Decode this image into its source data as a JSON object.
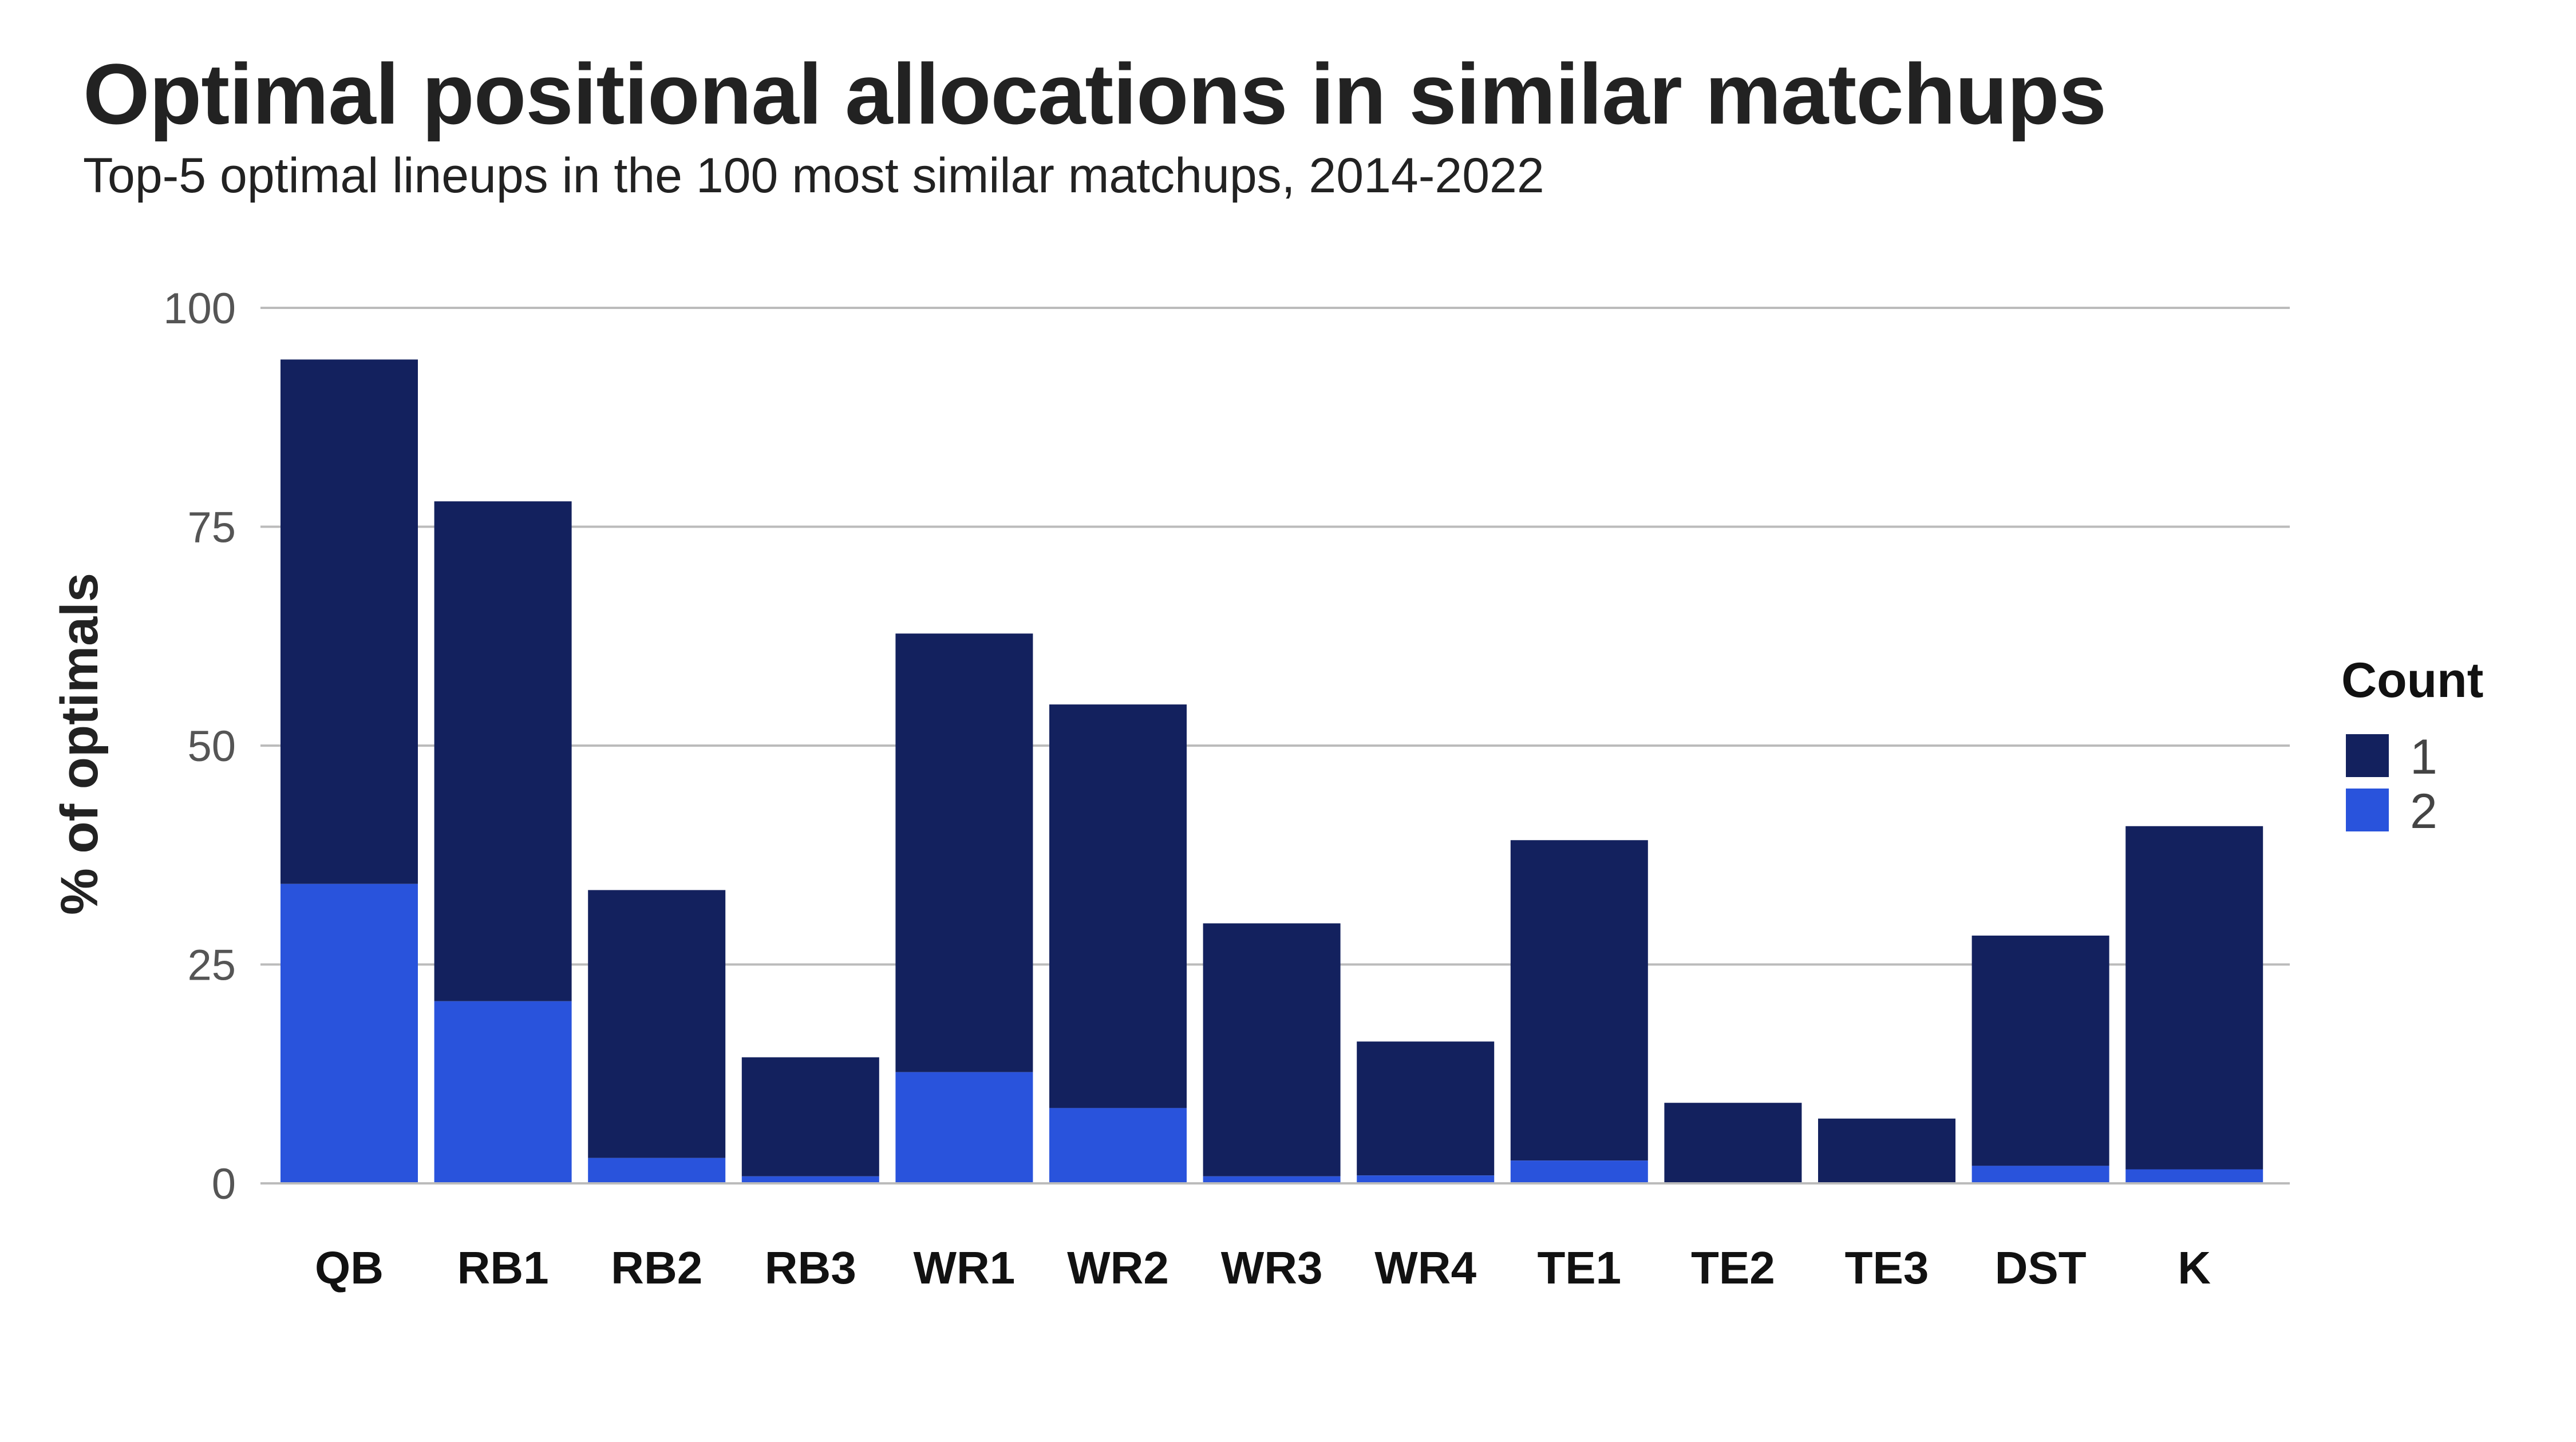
{
  "title": "Optimal positional allocations in similar matchups",
  "subtitle": "Top-5 optimal lineups in the 100 most similar matchups, 2014-2022",
  "colors": {
    "count_1": "#13215e",
    "count_2": "#2953dc",
    "grid": "#bbbbbb"
  },
  "chart_data": {
    "type": "bar",
    "stacked": true,
    "categories": [
      "QB",
      "RB1",
      "RB2",
      "RB3",
      "WR1",
      "WR2",
      "WR3",
      "WR4",
      "TE1",
      "TE2",
      "TE3",
      "DST",
      "K"
    ],
    "series": [
      {
        "name": "1",
        "values": [
          59.9,
          57.1,
          30.6,
          13.6,
          50.1,
          46.1,
          28.9,
          15.3,
          36.6,
          9.2,
          7.4,
          26.3,
          39.2
        ]
      },
      {
        "name": "2",
        "values": [
          34.2,
          20.8,
          2.9,
          0.8,
          12.7,
          8.6,
          0.8,
          0.9,
          2.6,
          0.0,
          0.0,
          2.0,
          1.6
        ]
      }
    ],
    "ylabel": "% of optimals",
    "xlabel": "",
    "ylim": [
      0,
      100
    ],
    "yticks": [
      0,
      25,
      50,
      75,
      100
    ],
    "grid": true,
    "legend_title": "Count",
    "legend_position": "right"
  }
}
